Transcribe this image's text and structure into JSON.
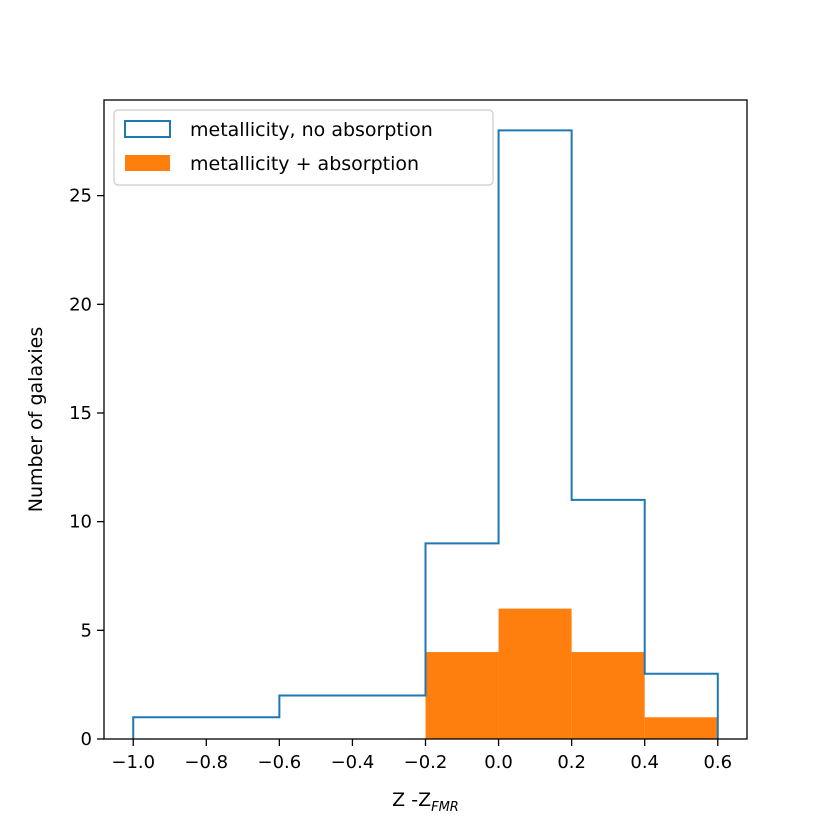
{
  "chart_data": {
    "type": "histogram",
    "bin_edges": [
      -1.0,
      -0.8,
      -0.6,
      -0.4,
      -0.2,
      0.0,
      0.2,
      0.4,
      0.6
    ],
    "series": [
      {
        "name": "metallicity, no absorption",
        "style": "step",
        "color": "#1f77b4",
        "counts": [
          1,
          1,
          2,
          2,
          9,
          28,
          11,
          3
        ]
      },
      {
        "name": "metallicity + absorption",
        "style": "filled",
        "color": "#ff7f0e",
        "counts": [
          0,
          0,
          0,
          0,
          4,
          6,
          4,
          1
        ]
      }
    ],
    "xlabel_main": "Z -Z",
    "xlabel_sub": "FMR",
    "ylabel": "Number of galaxies",
    "xlim": [
      -1.08,
      0.68
    ],
    "ylim": [
      0,
      29.4
    ],
    "xticks": [
      -1.0,
      -0.8,
      -0.6,
      -0.4,
      -0.2,
      0.0,
      0.2,
      0.4,
      0.6
    ],
    "xtick_labels": [
      "−1.0",
      "−0.8",
      "−0.6",
      "−0.4",
      "−0.2",
      "0.0",
      "0.2",
      "0.4",
      "0.6"
    ],
    "yticks": [
      0,
      5,
      10,
      15,
      20,
      25
    ],
    "ytick_labels": [
      "0",
      "5",
      "10",
      "15",
      "20",
      "25"
    ],
    "legend_position": "top-left",
    "grid": false
  }
}
